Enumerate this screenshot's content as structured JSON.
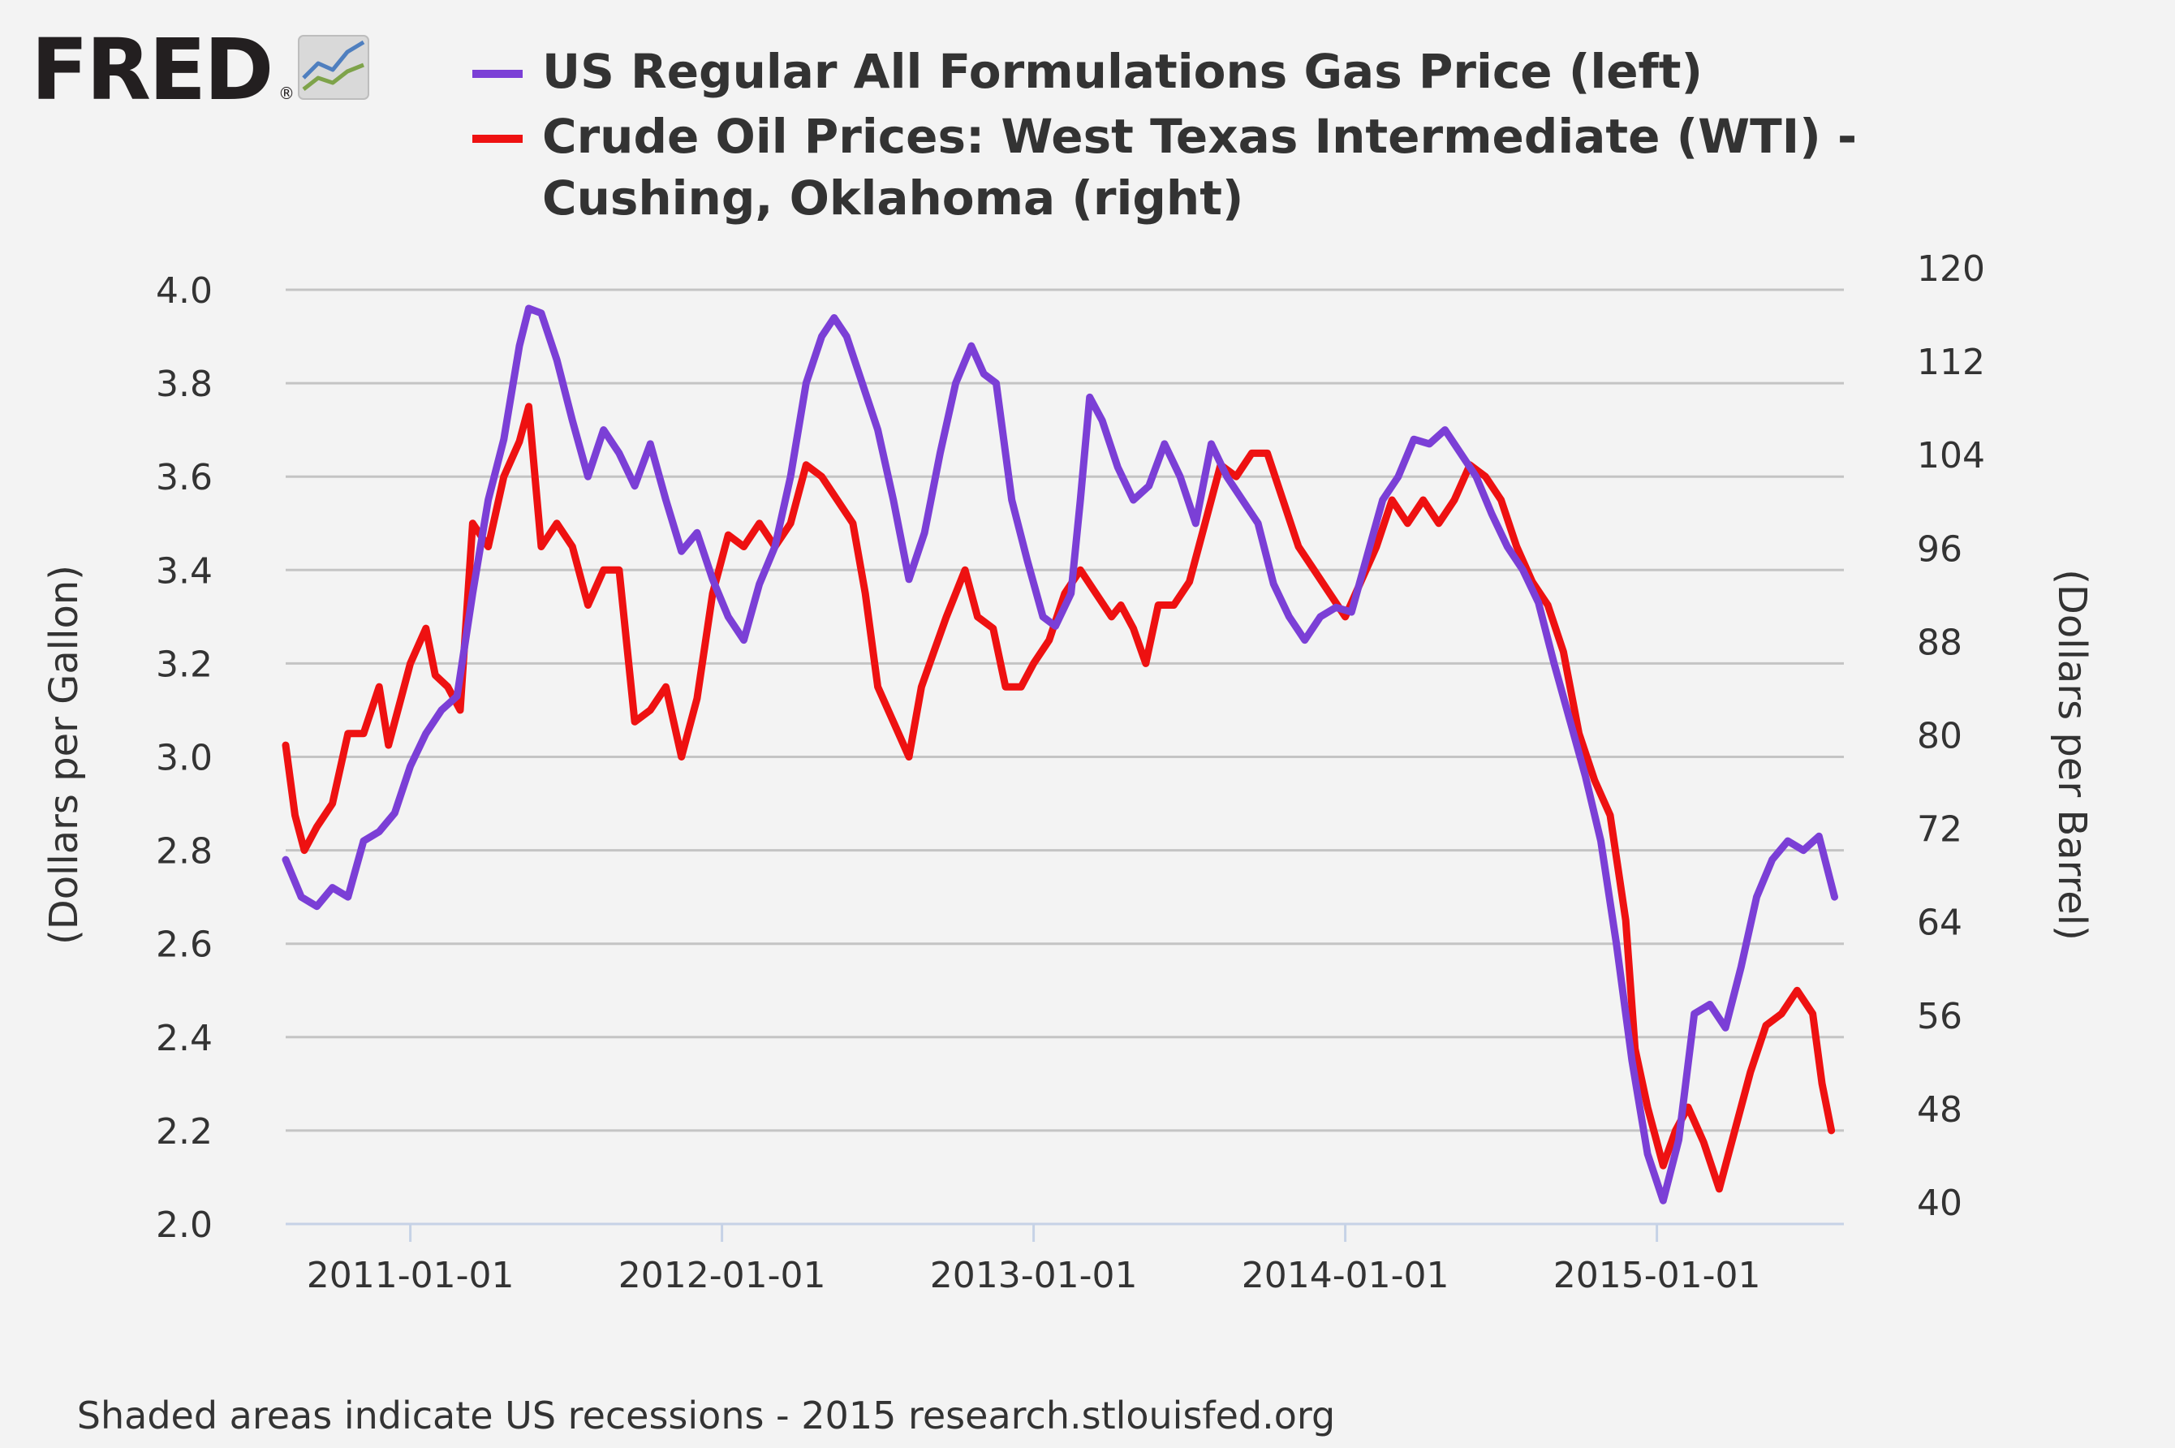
{
  "brand": {
    "text": "FRED",
    "registered": "®"
  },
  "legend": {
    "gas_label": "US Regular All Formulations Gas Price (left)",
    "oil_label_line1": "Crude Oil Prices: West Texas Intermediate (WTI) -",
    "oil_label_line2": "Cushing, Oklahoma (right)"
  },
  "footer": {
    "text": "Shaded areas indicate US recessions - 2015 research.stlouisfed.org"
  },
  "colors": {
    "background": "#f3f3f3",
    "gas": "#7b3fd6",
    "oil": "#ee1111",
    "grid": "#c4c4c4",
    "axis": "#c6d2e6",
    "text": "#333333"
  },
  "chart_data": {
    "type": "line",
    "title": "",
    "xlabel": "",
    "ylabel_left": "(Dollars per Gallon)",
    "ylabel_right": "(Dollars per Barrel)",
    "xlim": [
      2010.6,
      2015.6
    ],
    "ylim_left": [
      2.0,
      4.0
    ],
    "ylim_right": [
      40,
      120
    ],
    "x_ticks": [
      {
        "value": 2011.0,
        "label": "2011-01-01"
      },
      {
        "value": 2012.0,
        "label": "2012-01-01"
      },
      {
        "value": 2013.0,
        "label": "2013-01-01"
      },
      {
        "value": 2014.0,
        "label": "2014-01-01"
      },
      {
        "value": 2015.0,
        "label": "2015-01-01"
      }
    ],
    "y_left_ticks": [
      "2.0",
      "2.2",
      "2.4",
      "2.6",
      "2.8",
      "3.0",
      "3.2",
      "3.4",
      "3.6",
      "3.8",
      "4.0"
    ],
    "y_right_ticks": [
      "40",
      "48",
      "56",
      "64",
      "72",
      "80",
      "88",
      "96",
      "104",
      "112",
      "120"
    ],
    "grid": true,
    "legend_position": "top",
    "series": [
      {
        "name": "US Regular All Formulations Gas Price (left)",
        "axis": "left",
        "points": [
          [
            2010.6,
            2.78
          ],
          [
            2010.65,
            2.7
          ],
          [
            2010.7,
            2.68
          ],
          [
            2010.75,
            2.72
          ],
          [
            2010.8,
            2.7
          ],
          [
            2010.85,
            2.82
          ],
          [
            2010.9,
            2.84
          ],
          [
            2010.95,
            2.88
          ],
          [
            2011.0,
            2.98
          ],
          [
            2011.05,
            3.05
          ],
          [
            2011.1,
            3.1
          ],
          [
            2011.15,
            3.13
          ],
          [
            2011.2,
            3.35
          ],
          [
            2011.25,
            3.55
          ],
          [
            2011.3,
            3.68
          ],
          [
            2011.35,
            3.88
          ],
          [
            2011.38,
            3.96
          ],
          [
            2011.42,
            3.95
          ],
          [
            2011.47,
            3.85
          ],
          [
            2011.52,
            3.72
          ],
          [
            2011.57,
            3.6
          ],
          [
            2011.62,
            3.7
          ],
          [
            2011.67,
            3.65
          ],
          [
            2011.72,
            3.58
          ],
          [
            2011.77,
            3.67
          ],
          [
            2011.82,
            3.55
          ],
          [
            2011.87,
            3.44
          ],
          [
            2011.92,
            3.48
          ],
          [
            2011.97,
            3.38
          ],
          [
            2012.02,
            3.3
          ],
          [
            2012.07,
            3.25
          ],
          [
            2012.12,
            3.37
          ],
          [
            2012.17,
            3.45
          ],
          [
            2012.22,
            3.6
          ],
          [
            2012.27,
            3.8
          ],
          [
            2012.32,
            3.9
          ],
          [
            2012.36,
            3.94
          ],
          [
            2012.4,
            3.9
          ],
          [
            2012.45,
            3.8
          ],
          [
            2012.5,
            3.7
          ],
          [
            2012.55,
            3.55
          ],
          [
            2012.6,
            3.38
          ],
          [
            2012.65,
            3.48
          ],
          [
            2012.7,
            3.65
          ],
          [
            2012.75,
            3.8
          ],
          [
            2012.8,
            3.88
          ],
          [
            2012.84,
            3.82
          ],
          [
            2012.88,
            3.8
          ],
          [
            2012.93,
            3.55
          ],
          [
            2012.98,
            3.42
          ],
          [
            2013.03,
            3.3
          ],
          [
            2013.07,
            3.28
          ],
          [
            2013.12,
            3.35
          ],
          [
            2013.15,
            3.55
          ],
          [
            2013.18,
            3.77
          ],
          [
            2013.22,
            3.72
          ],
          [
            2013.27,
            3.62
          ],
          [
            2013.32,
            3.55
          ],
          [
            2013.37,
            3.58
          ],
          [
            2013.42,
            3.67
          ],
          [
            2013.47,
            3.6
          ],
          [
            2013.52,
            3.5
          ],
          [
            2013.57,
            3.67
          ],
          [
            2013.62,
            3.6
          ],
          [
            2013.67,
            3.55
          ],
          [
            2013.72,
            3.5
          ],
          [
            2013.77,
            3.37
          ],
          [
            2013.82,
            3.3
          ],
          [
            2013.87,
            3.25
          ],
          [
            2013.92,
            3.3
          ],
          [
            2013.97,
            3.32
          ],
          [
            2014.02,
            3.31
          ],
          [
            2014.07,
            3.43
          ],
          [
            2014.12,
            3.55
          ],
          [
            2014.17,
            3.6
          ],
          [
            2014.22,
            3.68
          ],
          [
            2014.27,
            3.67
          ],
          [
            2014.32,
            3.7
          ],
          [
            2014.37,
            3.65
          ],
          [
            2014.42,
            3.6
          ],
          [
            2014.47,
            3.52
          ],
          [
            2014.52,
            3.45
          ],
          [
            2014.57,
            3.4
          ],
          [
            2014.62,
            3.33
          ],
          [
            2014.67,
            3.2
          ],
          [
            2014.72,
            3.08
          ],
          [
            2014.77,
            2.96
          ],
          [
            2014.82,
            2.82
          ],
          [
            2014.87,
            2.6
          ],
          [
            2014.92,
            2.35
          ],
          [
            2014.97,
            2.15
          ],
          [
            2015.02,
            2.05
          ],
          [
            2015.07,
            2.18
          ],
          [
            2015.12,
            2.45
          ],
          [
            2015.17,
            2.47
          ],
          [
            2015.22,
            2.42
          ],
          [
            2015.27,
            2.55
          ],
          [
            2015.32,
            2.7
          ],
          [
            2015.37,
            2.78
          ],
          [
            2015.42,
            2.82
          ],
          [
            2015.47,
            2.8
          ],
          [
            2015.52,
            2.83
          ],
          [
            2015.57,
            2.7
          ]
        ]
      },
      {
        "name": "Crude Oil Prices: West Texas Intermediate (WTI) - Cushing, Oklahoma (right)",
        "axis": "right",
        "points": [
          [
            2010.6,
            81
          ],
          [
            2010.63,
            75
          ],
          [
            2010.66,
            72
          ],
          [
            2010.7,
            74
          ],
          [
            2010.75,
            76
          ],
          [
            2010.8,
            82
          ],
          [
            2010.85,
            82
          ],
          [
            2010.9,
            86
          ],
          [
            2010.93,
            81
          ],
          [
            2010.97,
            85
          ],
          [
            2011.0,
            88
          ],
          [
            2011.05,
            91
          ],
          [
            2011.08,
            87
          ],
          [
            2011.12,
            86
          ],
          [
            2011.16,
            84
          ],
          [
            2011.2,
            100
          ],
          [
            2011.25,
            98
          ],
          [
            2011.3,
            104
          ],
          [
            2011.35,
            107
          ],
          [
            2011.38,
            110
          ],
          [
            2011.42,
            98
          ],
          [
            2011.47,
            100
          ],
          [
            2011.52,
            98
          ],
          [
            2011.57,
            93
          ],
          [
            2011.62,
            96
          ],
          [
            2011.67,
            96
          ],
          [
            2011.72,
            83
          ],
          [
            2011.77,
            84
          ],
          [
            2011.82,
            86
          ],
          [
            2011.87,
            80
          ],
          [
            2011.92,
            85
          ],
          [
            2011.97,
            94
          ],
          [
            2012.02,
            99
          ],
          [
            2012.07,
            98
          ],
          [
            2012.12,
            100
          ],
          [
            2012.17,
            98
          ],
          [
            2012.22,
            100
          ],
          [
            2012.27,
            105
          ],
          [
            2012.32,
            104
          ],
          [
            2012.37,
            102
          ],
          [
            2012.42,
            100
          ],
          [
            2012.46,
            94
          ],
          [
            2012.5,
            86
          ],
          [
            2012.55,
            83
          ],
          [
            2012.6,
            80
          ],
          [
            2012.64,
            86
          ],
          [
            2012.68,
            89
          ],
          [
            2012.72,
            92
          ],
          [
            2012.78,
            96
          ],
          [
            2012.82,
            92
          ],
          [
            2012.87,
            91
          ],
          [
            2012.91,
            86
          ],
          [
            2012.96,
            86
          ],
          [
            2013.0,
            88
          ],
          [
            2013.05,
            90
          ],
          [
            2013.1,
            94
          ],
          [
            2013.15,
            96
          ],
          [
            2013.2,
            94
          ],
          [
            2013.25,
            92
          ],
          [
            2013.28,
            93
          ],
          [
            2013.32,
            91
          ],
          [
            2013.36,
            88
          ],
          [
            2013.4,
            93
          ],
          [
            2013.45,
            93
          ],
          [
            2013.5,
            95
          ],
          [
            2013.55,
            100
          ],
          [
            2013.6,
            105
          ],
          [
            2013.65,
            104
          ],
          [
            2013.7,
            106
          ],
          [
            2013.75,
            106
          ],
          [
            2013.8,
            102
          ],
          [
            2013.85,
            98
          ],
          [
            2013.9,
            96
          ],
          [
            2013.95,
            94
          ],
          [
            2014.0,
            92
          ],
          [
            2014.05,
            95
          ],
          [
            2014.1,
            98
          ],
          [
            2014.15,
            102
          ],
          [
            2014.2,
            100
          ],
          [
            2014.25,
            102
          ],
          [
            2014.3,
            100
          ],
          [
            2014.35,
            102
          ],
          [
            2014.4,
            105
          ],
          [
            2014.45,
            104
          ],
          [
            2014.5,
            102
          ],
          [
            2014.55,
            98
          ],
          [
            2014.6,
            95
          ],
          [
            2014.65,
            93
          ],
          [
            2014.7,
            89
          ],
          [
            2014.75,
            82
          ],
          [
            2014.8,
            78
          ],
          [
            2014.85,
            75
          ],
          [
            2014.9,
            66
          ],
          [
            2014.93,
            55
          ],
          [
            2014.97,
            50
          ],
          [
            2015.02,
            45
          ],
          [
            2015.06,
            48
          ],
          [
            2015.1,
            50
          ],
          [
            2015.15,
            47
          ],
          [
            2015.2,
            43
          ],
          [
            2015.25,
            48
          ],
          [
            2015.3,
            53
          ],
          [
            2015.35,
            57
          ],
          [
            2015.4,
            58
          ],
          [
            2015.45,
            60
          ],
          [
            2015.5,
            58
          ],
          [
            2015.53,
            52
          ],
          [
            2015.56,
            48
          ]
        ]
      }
    ]
  }
}
